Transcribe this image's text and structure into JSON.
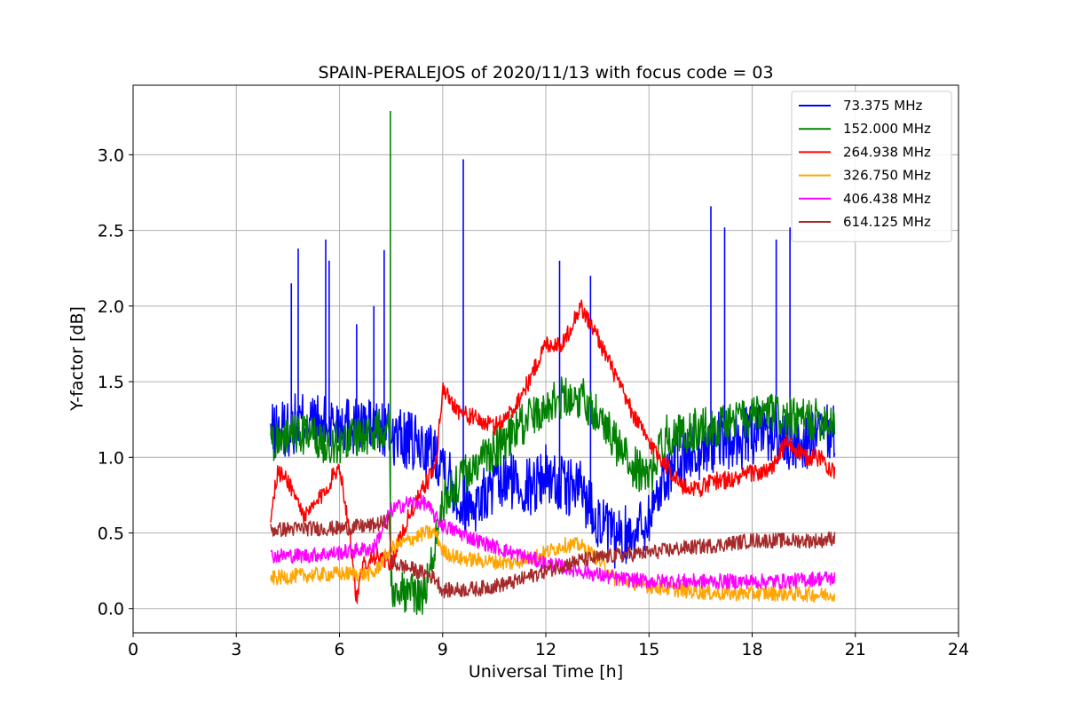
{
  "chart_data": {
    "type": "line",
    "title": "SPAIN-PERALEJOS of 2020/11/13 with focus code = 03",
    "xlabel": "Universal Time [h]",
    "ylabel": "Y-factor [dB]",
    "xlim": [
      0,
      24
    ],
    "ylim": [
      -0.16,
      3.46
    ],
    "xticks": [
      0,
      3,
      6,
      9,
      12,
      15,
      18,
      21,
      24
    ],
    "yticks": [
      0.0,
      0.5,
      1.0,
      1.5,
      2.0,
      2.5,
      3.0
    ],
    "xtick_labels": [
      "0",
      "3",
      "6",
      "9",
      "12",
      "15",
      "18",
      "21",
      "24"
    ],
    "ytick_labels": [
      "0.0",
      "0.5",
      "1.0",
      "1.5",
      "2.0",
      "2.5",
      "3.0"
    ],
    "grid": true,
    "legend_position": "top-right",
    "series": [
      {
        "name": " 73.375 MHz",
        "color": "#0000ff",
        "x": [
          4.0,
          4.5,
          5.0,
          5.5,
          6.0,
          6.5,
          7.0,
          7.5,
          8.0,
          8.5,
          9.0,
          9.5,
          10.0,
          10.5,
          11.0,
          11.5,
          12.0,
          12.5,
          13.0,
          13.5,
          14.0,
          14.5,
          15.0,
          15.5,
          16.0,
          16.5,
          17.0,
          17.5,
          18.0,
          18.5,
          19.0,
          19.5,
          20.0,
          20.4
        ],
        "y": [
          1.15,
          1.2,
          1.25,
          1.2,
          1.25,
          1.2,
          1.2,
          1.15,
          1.1,
          1.05,
          1.0,
          0.7,
          0.7,
          0.8,
          0.85,
          0.8,
          0.9,
          0.8,
          0.8,
          0.6,
          0.45,
          0.5,
          0.6,
          0.9,
          1.0,
          1.05,
          1.1,
          1.1,
          1.15,
          1.15,
          1.1,
          1.1,
          1.15,
          1.15
        ],
        "peaks_x": [
          4.6,
          4.8,
          5.6,
          5.7,
          6.5,
          7.0,
          7.3,
          9.6,
          12.4,
          13.3,
          16.8,
          17.2,
          18.7,
          19.1
        ],
        "peaks_y": [
          2.15,
          2.38,
          2.44,
          2.3,
          1.88,
          2.0,
          2.37,
          2.97,
          2.3,
          2.2,
          2.66,
          2.52,
          2.44,
          2.52
        ]
      },
      {
        "name": "152.000 MHz",
        "color": "#008000",
        "x": [
          4.0,
          4.5,
          5.0,
          5.5,
          6.0,
          6.5,
          7.0,
          7.45,
          7.5,
          8.0,
          8.5,
          9.0,
          9.5,
          10.0,
          10.5,
          11.0,
          11.5,
          12.0,
          12.5,
          13.0,
          13.5,
          14.0,
          14.5,
          15.0,
          15.5,
          16.0,
          16.5,
          17.0,
          17.5,
          18.0,
          18.5,
          19.0,
          19.5,
          20.0,
          20.4
        ],
        "y": [
          1.1,
          1.15,
          1.15,
          1.1,
          1.1,
          1.15,
          1.15,
          1.25,
          0.15,
          0.1,
          0.1,
          0.7,
          0.85,
          0.95,
          1.05,
          1.15,
          1.25,
          1.35,
          1.4,
          1.4,
          1.3,
          1.1,
          0.95,
          0.85,
          1.15,
          1.15,
          1.2,
          1.2,
          1.25,
          1.25,
          1.3,
          1.25,
          1.25,
          1.25,
          1.25
        ],
        "peaks_x": [
          7.48
        ],
        "peaks_y": [
          3.29
        ]
      },
      {
        "name": "264.938 MHz",
        "color": "#ff0000",
        "x": [
          4.0,
          4.2,
          4.5,
          5.0,
          5.5,
          6.0,
          6.3,
          6.5,
          6.7,
          7.0,
          7.5,
          8.0,
          8.8,
          9.0,
          9.5,
          10.0,
          10.5,
          11.0,
          11.5,
          12.0,
          12.5,
          13.0,
          13.5,
          14.0,
          14.5,
          15.0,
          15.5,
          16.0,
          16.5,
          17.0,
          17.5,
          18.0,
          18.5,
          19.0,
          19.5,
          20.0,
          20.4
        ],
        "y": [
          0.6,
          0.9,
          0.85,
          0.6,
          0.75,
          0.95,
          0.5,
          0.05,
          0.3,
          0.35,
          0.3,
          0.6,
          0.95,
          1.45,
          1.3,
          1.25,
          1.2,
          1.3,
          1.5,
          1.75,
          1.75,
          2.0,
          1.8,
          1.55,
          1.3,
          1.1,
          0.95,
          0.8,
          0.8,
          0.85,
          0.85,
          0.9,
          0.9,
          1.1,
          1.0,
          1.0,
          0.9
        ]
      },
      {
        "name": "326.750 MHz",
        "color": "#ffa500",
        "x": [
          4.0,
          5.0,
          6.0,
          7.0,
          7.5,
          8.0,
          8.5,
          8.8,
          9.0,
          9.5,
          10.0,
          11.0,
          12.0,
          12.5,
          13.0,
          13.5,
          14.0,
          15.0,
          16.0,
          17.0,
          18.0,
          19.0,
          20.0,
          20.4
        ],
        "y": [
          0.2,
          0.22,
          0.23,
          0.23,
          0.4,
          0.45,
          0.5,
          0.5,
          0.38,
          0.33,
          0.32,
          0.3,
          0.37,
          0.42,
          0.42,
          0.33,
          0.2,
          0.15,
          0.12,
          0.1,
          0.1,
          0.1,
          0.09,
          0.1
        ]
      },
      {
        "name": "406.438 MHz",
        "color": "#ff00ff",
        "x": [
          4.0,
          5.0,
          6.0,
          7.0,
          7.5,
          8.0,
          8.5,
          8.8,
          9.0,
          9.5,
          10.0,
          11.0,
          12.0,
          13.0,
          14.0,
          15.0,
          16.0,
          17.0,
          18.0,
          19.0,
          20.0,
          20.4
        ],
        "y": [
          0.35,
          0.35,
          0.37,
          0.4,
          0.65,
          0.7,
          0.7,
          0.6,
          0.55,
          0.5,
          0.45,
          0.37,
          0.3,
          0.25,
          0.2,
          0.18,
          0.18,
          0.18,
          0.18,
          0.18,
          0.2,
          0.2
        ]
      },
      {
        "name": "614.125 MHz",
        "color": "#a52a2a",
        "x": [
          4.0,
          5.0,
          6.0,
          7.0,
          7.45,
          7.5,
          8.0,
          8.5,
          8.8,
          9.0,
          10.0,
          11.0,
          12.0,
          13.0,
          14.0,
          15.0,
          16.0,
          17.0,
          18.0,
          19.0,
          20.0,
          20.4
        ],
        "y": [
          0.52,
          0.53,
          0.53,
          0.55,
          0.58,
          0.3,
          0.27,
          0.23,
          0.2,
          0.12,
          0.13,
          0.17,
          0.25,
          0.32,
          0.35,
          0.37,
          0.4,
          0.42,
          0.45,
          0.45,
          0.45,
          0.47
        ]
      }
    ]
  }
}
